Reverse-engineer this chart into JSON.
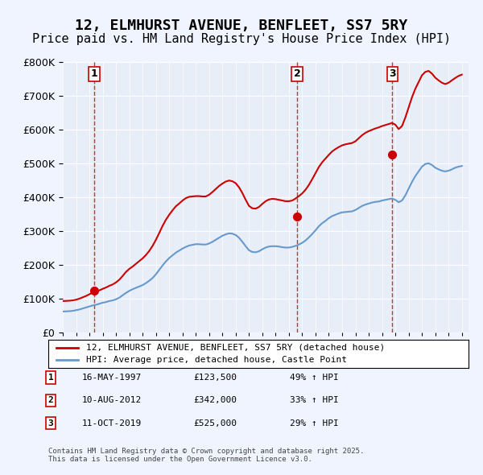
{
  "title": "12, ELMHURST AVENUE, BENFLEET, SS7 5RY",
  "subtitle": "Price paid vs. HM Land Registry's House Price Index (HPI)",
  "title_fontsize": 13,
  "subtitle_fontsize": 11,
  "background_color": "#f0f4ff",
  "plot_bg_color": "#e8eef8",
  "ylabel": "",
  "ylim": [
    0,
    800000
  ],
  "xlim_start": 1995.0,
  "xlim_end": 2025.5,
  "sale_dates": [
    1997.37,
    2012.61,
    2019.78
  ],
  "sale_prices": [
    123500,
    342000,
    525000
  ],
  "sale_labels": [
    "1",
    "2",
    "3"
  ],
  "sale_date_strings": [
    "16-MAY-1997",
    "10-AUG-2012",
    "11-OCT-2019"
  ],
  "sale_price_strings": [
    "£123,500",
    "£342,000",
    "£525,000"
  ],
  "sale_hpi_strings": [
    "49% ↑ HPI",
    "33% ↑ HPI",
    "29% ↑ HPI"
  ],
  "line_color_red": "#cc0000",
  "line_color_blue": "#6699cc",
  "legend_label_red": "12, ELMHURST AVENUE, BENFLEET, SS7 5RY (detached house)",
  "legend_label_blue": "HPI: Average price, detached house, Castle Point",
  "footer_text": "Contains HM Land Registry data © Crown copyright and database right 2025.\nThis data is licensed under the Open Government Licence v3.0.",
  "hpi_x": [
    1995.0,
    1995.25,
    1995.5,
    1995.75,
    1996.0,
    1996.25,
    1996.5,
    1996.75,
    1997.0,
    1997.25,
    1997.5,
    1997.75,
    1998.0,
    1998.25,
    1998.5,
    1998.75,
    1999.0,
    1999.25,
    1999.5,
    1999.75,
    2000.0,
    2000.25,
    2000.5,
    2000.75,
    2001.0,
    2001.25,
    2001.5,
    2001.75,
    2002.0,
    2002.25,
    2002.5,
    2002.75,
    2003.0,
    2003.25,
    2003.5,
    2003.75,
    2004.0,
    2004.25,
    2004.5,
    2004.75,
    2005.0,
    2005.25,
    2005.5,
    2005.75,
    2006.0,
    2006.25,
    2006.5,
    2006.75,
    2007.0,
    2007.25,
    2007.5,
    2007.75,
    2008.0,
    2008.25,
    2008.5,
    2008.75,
    2009.0,
    2009.25,
    2009.5,
    2009.75,
    2010.0,
    2010.25,
    2010.5,
    2010.75,
    2011.0,
    2011.25,
    2011.5,
    2011.75,
    2012.0,
    2012.25,
    2012.5,
    2012.75,
    2013.0,
    2013.25,
    2013.5,
    2013.75,
    2014.0,
    2014.25,
    2014.5,
    2014.75,
    2015.0,
    2015.25,
    2015.5,
    2015.75,
    2016.0,
    2016.25,
    2016.5,
    2016.75,
    2017.0,
    2017.25,
    2017.5,
    2017.75,
    2018.0,
    2018.25,
    2018.5,
    2018.75,
    2019.0,
    2019.25,
    2019.5,
    2019.75,
    2020.0,
    2020.25,
    2020.5,
    2020.75,
    2021.0,
    2021.25,
    2021.5,
    2021.75,
    2022.0,
    2022.25,
    2022.5,
    2022.75,
    2023.0,
    2023.25,
    2023.5,
    2023.75,
    2024.0,
    2024.25,
    2024.5,
    2024.75,
    2025.0
  ],
  "hpi_y": [
    62000,
    62500,
    63000,
    64000,
    66000,
    68000,
    71000,
    74000,
    77000,
    80000,
    82000,
    85000,
    88000,
    90000,
    93000,
    95000,
    98000,
    103000,
    110000,
    117000,
    123000,
    128000,
    132000,
    136000,
    140000,
    146000,
    153000,
    161000,
    172000,
    185000,
    198000,
    210000,
    220000,
    228000,
    236000,
    242000,
    248000,
    253000,
    257000,
    259000,
    261000,
    261000,
    260000,
    260000,
    263000,
    268000,
    274000,
    280000,
    286000,
    290000,
    293000,
    292000,
    288000,
    280000,
    268000,
    255000,
    243000,
    238000,
    237000,
    240000,
    246000,
    251000,
    254000,
    255000,
    255000,
    254000,
    252000,
    251000,
    251000,
    253000,
    256000,
    260000,
    265000,
    272000,
    281000,
    291000,
    302000,
    314000,
    323000,
    330000,
    338000,
    344000,
    348000,
    352000,
    355000,
    356000,
    357000,
    358000,
    362000,
    368000,
    374000,
    378000,
    381000,
    384000,
    386000,
    387000,
    390000,
    392000,
    394000,
    396000,
    392000,
    385000,
    390000,
    405000,
    425000,
    445000,
    462000,
    476000,
    490000,
    498000,
    500000,
    495000,
    487000,
    482000,
    478000,
    476000,
    478000,
    482000,
    487000,
    490000,
    492000
  ],
  "red_x": [
    1995.0,
    1995.25,
    1995.5,
    1995.75,
    1996.0,
    1996.25,
    1996.5,
    1996.75,
    1997.0,
    1997.25,
    1997.5,
    1997.75,
    1998.0,
    1998.25,
    1998.5,
    1998.75,
    1999.0,
    1999.25,
    1999.5,
    1999.75,
    2000.0,
    2000.25,
    2000.5,
    2000.75,
    2001.0,
    2001.25,
    2001.5,
    2001.75,
    2002.0,
    2002.25,
    2002.5,
    2002.75,
    2003.0,
    2003.25,
    2003.5,
    2003.75,
    2004.0,
    2004.25,
    2004.5,
    2004.75,
    2005.0,
    2005.25,
    2005.5,
    2005.75,
    2006.0,
    2006.25,
    2006.5,
    2006.75,
    2007.0,
    2007.25,
    2007.5,
    2007.75,
    2008.0,
    2008.25,
    2008.5,
    2008.75,
    2009.0,
    2009.25,
    2009.5,
    2009.75,
    2010.0,
    2010.25,
    2010.5,
    2010.75,
    2011.0,
    2011.25,
    2011.5,
    2011.75,
    2012.0,
    2012.25,
    2012.5,
    2012.75,
    2013.0,
    2013.25,
    2013.5,
    2013.75,
    2014.0,
    2014.25,
    2014.5,
    2014.75,
    2015.0,
    2015.25,
    2015.5,
    2015.75,
    2016.0,
    2016.25,
    2016.5,
    2016.75,
    2017.0,
    2017.25,
    2017.5,
    2017.75,
    2018.0,
    2018.25,
    2018.5,
    2018.75,
    2019.0,
    2019.25,
    2019.5,
    2019.75,
    2020.0,
    2020.25,
    2020.5,
    2020.75,
    2021.0,
    2021.25,
    2021.5,
    2021.75,
    2022.0,
    2022.25,
    2022.5,
    2022.75,
    2023.0,
    2023.25,
    2023.5,
    2023.75,
    2024.0,
    2024.25,
    2024.5,
    2024.75,
    2025.0
  ],
  "red_y": [
    93000,
    93500,
    94000,
    95000,
    97000,
    100000,
    104000,
    108000,
    113000,
    118000,
    121000,
    124500,
    129000,
    133000,
    138000,
    142000,
    148000,
    156000,
    167000,
    179000,
    188000,
    195000,
    203000,
    211000,
    219000,
    229000,
    241000,
    256000,
    274000,
    294000,
    315000,
    333000,
    348000,
    361000,
    373000,
    381000,
    390000,
    397000,
    401000,
    402000,
    403000,
    403000,
    402000,
    402000,
    407000,
    415000,
    424000,
    433000,
    440000,
    446000,
    449000,
    447000,
    441000,
    429000,
    412000,
    392000,
    374000,
    367000,
    366000,
    371000,
    380000,
    388000,
    393000,
    395000,
    394000,
    392000,
    390000,
    388000,
    388000,
    390000,
    396000,
    403000,
    411000,
    422000,
    436000,
    453000,
    471000,
    489000,
    503000,
    514000,
    525000,
    535000,
    542000,
    548000,
    553000,
    556000,
    558000,
    560000,
    565000,
    574000,
    583000,
    590000,
    595000,
    599000,
    603000,
    606000,
    610000,
    613000,
    616000,
    619000,
    614000,
    601000,
    610000,
    635000,
    665000,
    695000,
    720000,
    740000,
    760000,
    770000,
    773000,
    765000,
    753000,
    745000,
    738000,
    734000,
    738000,
    745000,
    752000,
    758000,
    762000
  ]
}
